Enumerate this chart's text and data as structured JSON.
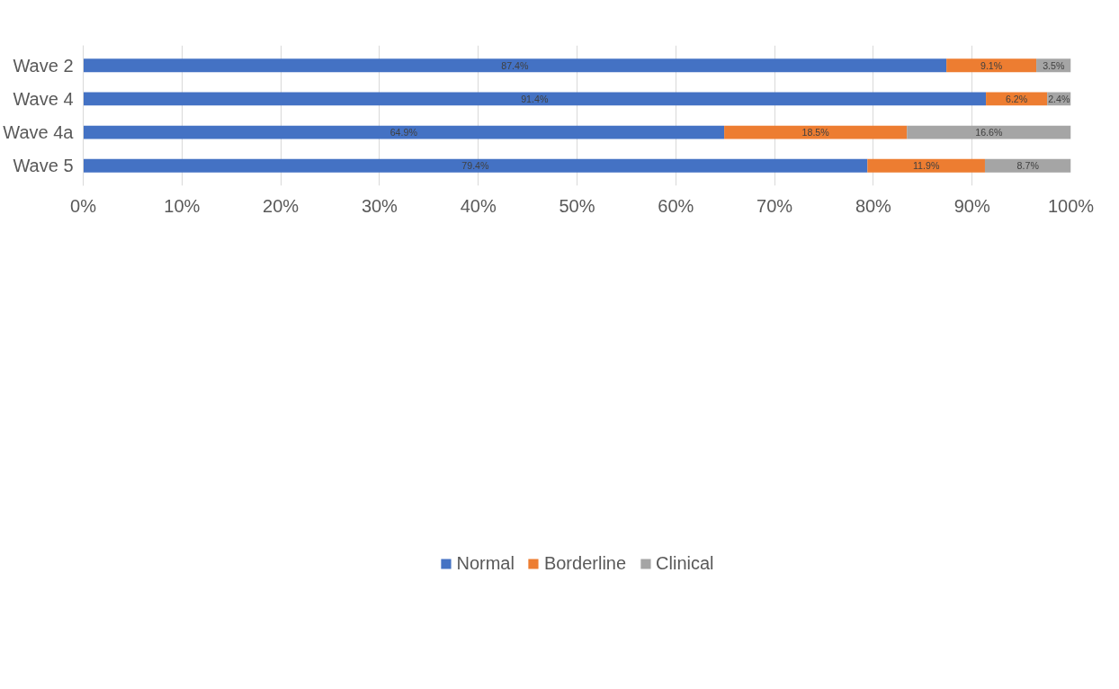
{
  "chart_data": {
    "type": "bar",
    "orientation": "horizontal",
    "stacked": true,
    "categories": [
      "Wave 2",
      "Wave 4",
      "Wave 4a",
      "Wave 5"
    ],
    "series": [
      {
        "name": "Normal",
        "color": "#4472c4",
        "values": [
          87.4,
          91.4,
          64.9,
          79.4
        ],
        "value_labels": [
          "87.4%",
          "91.4%",
          "64.9%",
          "79.4%"
        ]
      },
      {
        "name": "Borderline",
        "color": "#ed7d31",
        "values": [
          9.1,
          6.2,
          18.5,
          11.9
        ],
        "value_labels": [
          "9.1%",
          "6.2%",
          "18.5%",
          "11.9%"
        ]
      },
      {
        "name": "Clinical",
        "color": "#a5a5a5",
        "values": [
          3.5,
          2.4,
          16.6,
          8.7
        ],
        "value_labels": [
          "3.5%",
          "2.4%",
          "16.6%",
          "8.7%"
        ]
      }
    ],
    "xlim": [
      0,
      100
    ],
    "xticks": [
      {
        "value": 0,
        "label": "0%"
      },
      {
        "value": 10,
        "label": "10%"
      },
      {
        "value": 20,
        "label": "20%"
      },
      {
        "value": 30,
        "label": "30%"
      },
      {
        "value": 40,
        "label": "40%"
      },
      {
        "value": 50,
        "label": "50%"
      },
      {
        "value": 60,
        "label": "60%"
      },
      {
        "value": 70,
        "label": "70%"
      },
      {
        "value": 80,
        "label": "80%"
      },
      {
        "value": 90,
        "label": "90%"
      },
      {
        "value": 100,
        "label": "100%"
      }
    ],
    "grid": "x",
    "legend": "bottom"
  }
}
